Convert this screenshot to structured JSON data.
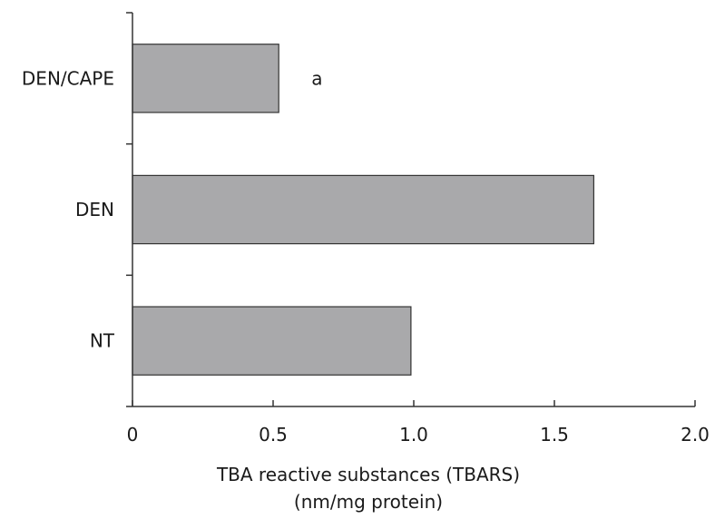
{
  "chart_data": {
    "type": "bar",
    "orientation": "horizontal",
    "categories": [
      "DEN/CAPE",
      "DEN",
      "NT"
    ],
    "values": [
      0.52,
      1.64,
      0.99
    ],
    "annotations": [
      {
        "category": "DEN/CAPE",
        "text": "a"
      }
    ],
    "title": "",
    "xlabel": "TBA reactive substances (TBARS)",
    "xlabel_unit": "(nm/mg protein)",
    "ylabel": "",
    "xlim": [
      0,
      2.0
    ],
    "xticks": [
      0,
      0.5,
      1.0,
      1.5,
      2.0
    ],
    "xtick_labels": [
      "0",
      "0.5",
      "1.0",
      "1.5",
      "2.0"
    ],
    "grid": false,
    "legend": "none",
    "bar_color": "#a9a9ab",
    "bar_edge_color": "#333333"
  }
}
